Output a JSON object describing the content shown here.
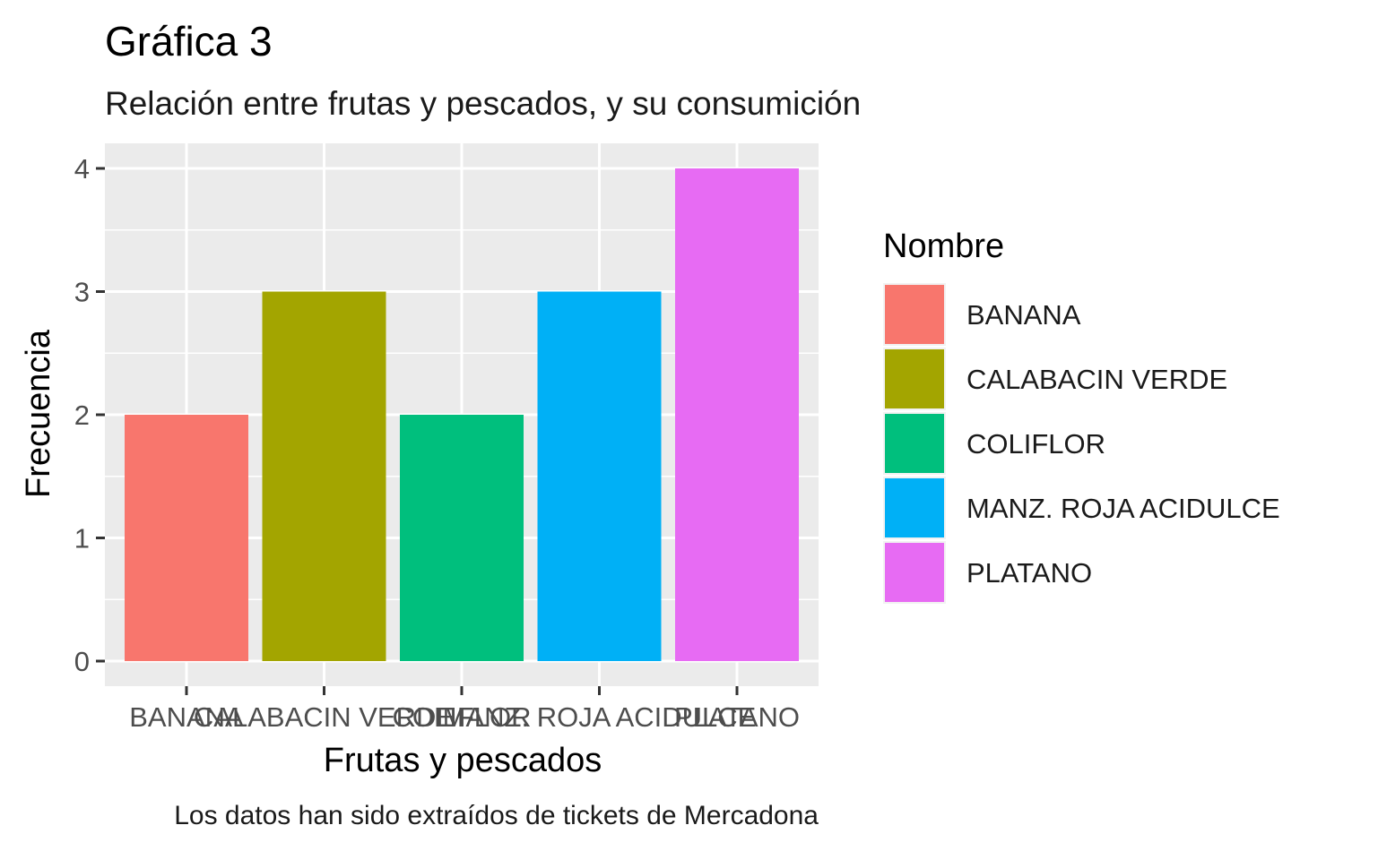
{
  "chart_data": {
    "type": "bar",
    "title": "Gráfica 3",
    "subtitle": "Relación entre frutas y pescados, y su consumición",
    "xlabel": "Frutas y pescados",
    "ylabel": "Frecuencia",
    "caption": "Los datos han sido extraídos de tickets de Mercadona",
    "categories": [
      "BANANA",
      "CALABACIN VERDE",
      "COLIFLOR",
      "MANZ. ROJA ACIDULCE",
      "PLATANO"
    ],
    "values": [
      2,
      3,
      2,
      3,
      4
    ],
    "colors": [
      "#F8766D",
      "#A3A500",
      "#00BF7D",
      "#00B0F6",
      "#E76BF3"
    ],
    "ylim": [
      0,
      4
    ],
    "yticks": [
      0,
      1,
      2,
      3,
      4
    ],
    "grid": true,
    "panel_background": "#EBEBEB",
    "legend": {
      "title": "Nombre",
      "position": "right",
      "entries": [
        "BANANA",
        "CALABACIN VERDE",
        "COLIFLOR",
        "MANZ. ROJA ACIDULCE",
        "PLATANO"
      ]
    }
  }
}
